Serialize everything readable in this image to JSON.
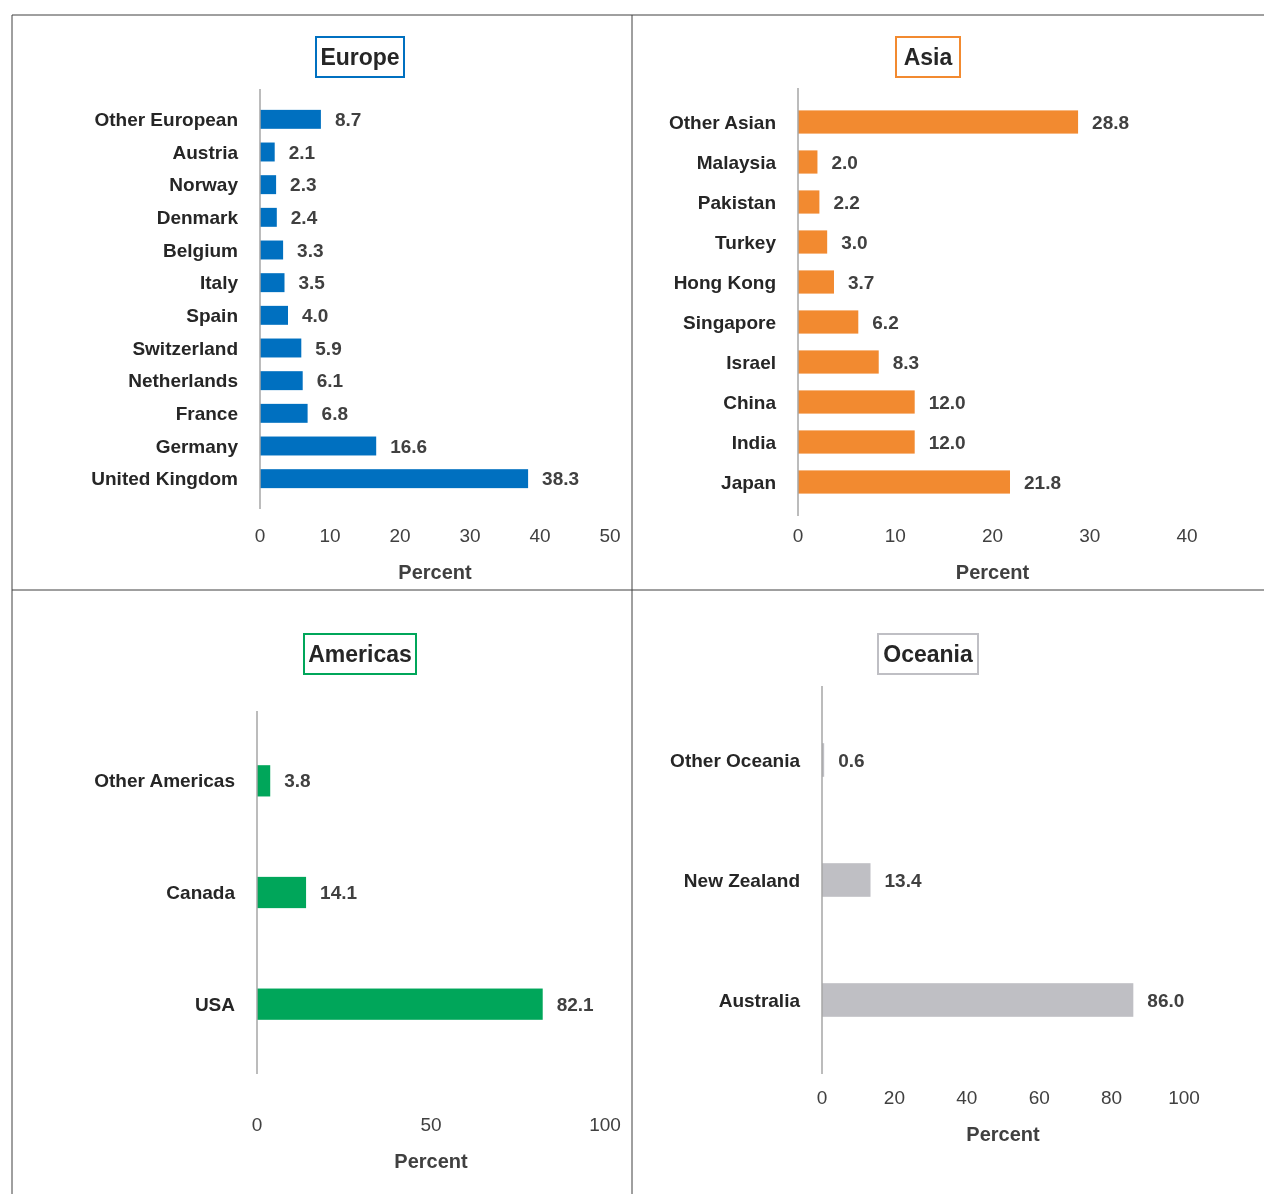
{
  "chart_data": [
    {
      "type": "bar",
      "orientation": "horizontal",
      "title": "Europe",
      "xlabel": "Percent",
      "categories": [
        "Other European",
        "Austria",
        "Norway",
        "Denmark",
        "Belgium",
        "Italy",
        "Spain",
        "Switzerland",
        "Netherlands",
        "France",
        "Germany",
        "United Kingdom"
      ],
      "values": [
        8.7,
        2.1,
        2.3,
        2.4,
        3.3,
        3.5,
        4.0,
        5.9,
        6.1,
        6.8,
        16.6,
        38.3
      ],
      "value_labels": [
        "8.7",
        "2.1",
        "2.3",
        "2.4",
        "3.3",
        "3.5",
        "4.0",
        "5.9",
        "6.1",
        "6.8",
        "16.6",
        "38.3"
      ],
      "color": "#0070c0",
      "xlim": [
        0,
        50
      ],
      "xticks": [
        0,
        10,
        20,
        30,
        40,
        50
      ]
    },
    {
      "type": "bar",
      "orientation": "horizontal",
      "title": "Asia",
      "xlabel": "Percent",
      "categories": [
        "Other Asian",
        "Malaysia",
        "Pakistan",
        "Turkey",
        "Hong Kong",
        "Singapore",
        "Israel",
        "China",
        "India",
        "Japan"
      ],
      "values": [
        28.8,
        2.0,
        2.2,
        3.0,
        3.7,
        6.2,
        8.3,
        12.0,
        12.0,
        21.8
      ],
      "value_labels": [
        "28.8",
        "2.0",
        "2.2",
        "3.0",
        "3.7",
        "6.2",
        "8.3",
        "12.0",
        "12.0",
        "21.8"
      ],
      "color": "#f28a30",
      "xlim": [
        0,
        40
      ],
      "xticks": [
        0,
        10,
        20,
        30,
        40
      ]
    },
    {
      "type": "bar",
      "orientation": "horizontal",
      "title": "Americas",
      "xlabel": "Percent",
      "categories": [
        "Other Americas",
        "Canada",
        "USA"
      ],
      "values": [
        3.8,
        14.1,
        82.1
      ],
      "value_labels": [
        "3.8",
        "14.1",
        "82.1"
      ],
      "color": "#00a65a",
      "xlim": [
        0,
        100
      ],
      "xticks": [
        0,
        50,
        100
      ]
    },
    {
      "type": "bar",
      "orientation": "horizontal",
      "title": "Oceania",
      "xlabel": "Percent",
      "categories": [
        "Other Oceania",
        "New Zealand",
        "Australia"
      ],
      "values": [
        0.6,
        13.4,
        86.0
      ],
      "value_labels": [
        "0.6",
        "13.4",
        "86.0"
      ],
      "color": "#bfbfc4",
      "xlim": [
        0,
        100
      ],
      "xticks": [
        0,
        20,
        40,
        60,
        80,
        100
      ]
    }
  ]
}
